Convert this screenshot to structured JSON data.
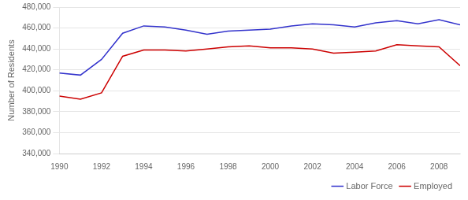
{
  "chart_data": {
    "type": "line",
    "ylabel": "Number of Residents",
    "x": [
      1990,
      1991,
      1992,
      1993,
      1994,
      1995,
      1996,
      1997,
      1998,
      1999,
      2000,
      2001,
      2002,
      2003,
      2004,
      2005,
      2006,
      2007,
      2008,
      2009
    ],
    "series": [
      {
        "name": "Labor Force",
        "color": "#3333CC",
        "values": [
          417000,
          415000,
          430000,
          455000,
          462000,
          461000,
          458000,
          454000,
          457000,
          458000,
          459000,
          462000,
          464000,
          463000,
          461000,
          465000,
          467000,
          464000,
          468000,
          463000
        ]
      },
      {
        "name": "Employed",
        "color": "#CC0000",
        "values": [
          395000,
          392000,
          398000,
          433000,
          439000,
          439000,
          438000,
          440000,
          442000,
          443000,
          441000,
          441000,
          440000,
          436000,
          437000,
          438000,
          444000,
          443000,
          442000,
          424000
        ]
      }
    ],
    "xlim": [
      1990,
      2009
    ],
    "xticks": [
      1990,
      1992,
      1994,
      1996,
      1998,
      2000,
      2002,
      2004,
      2006,
      2008
    ],
    "ylim": [
      340000,
      480000
    ],
    "yticks": [
      {
        "value": 340000,
        "label": "340,000"
      },
      {
        "value": 360000,
        "label": "360,000"
      },
      {
        "value": 380000,
        "label": "380,000"
      },
      {
        "value": 400000,
        "label": "400,000"
      },
      {
        "value": 420000,
        "label": "420,000"
      },
      {
        "value": 440000,
        "label": "440,000"
      },
      {
        "value": 460000,
        "label": "460,000"
      },
      {
        "value": 480000,
        "label": "480,000"
      }
    ],
    "grid": "y",
    "legend": "lower right"
  }
}
